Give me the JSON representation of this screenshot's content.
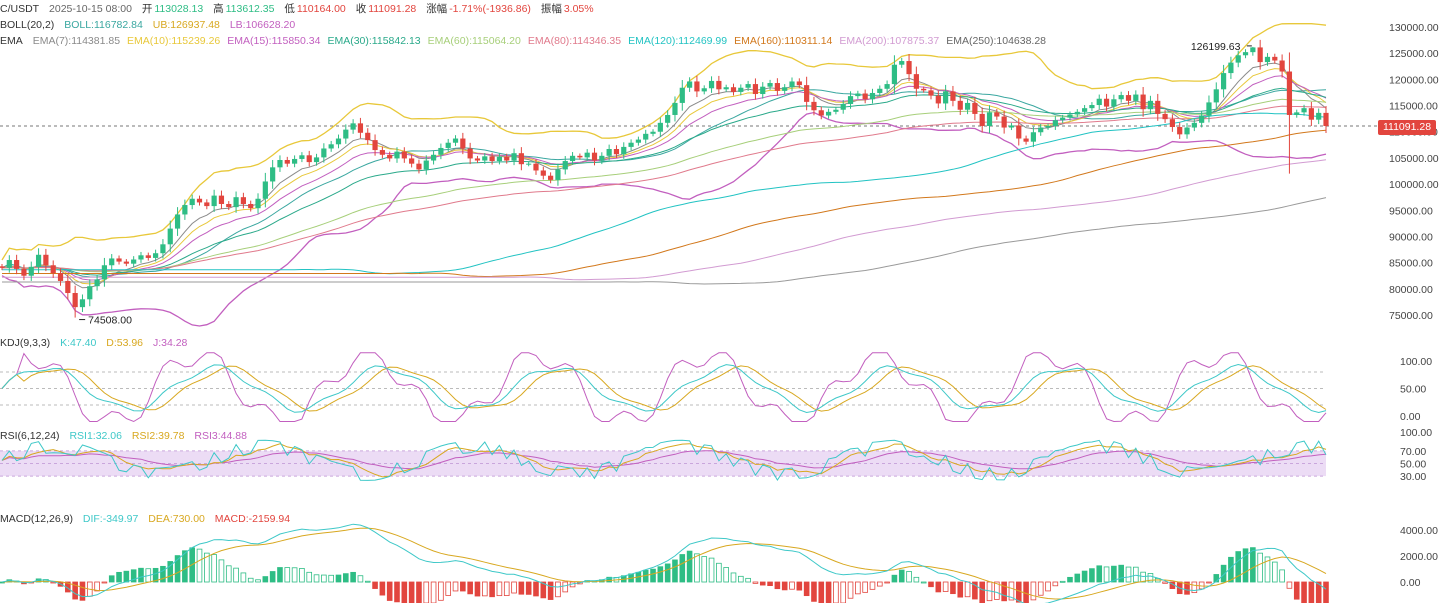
{
  "header": {
    "symbol": "C/USDT",
    "datetime": "2025-10-15 08:00",
    "open_label": "开",
    "open": "113028.13",
    "high_label": "高",
    "high": "113612.35",
    "low_label": "低",
    "low": "110164.00",
    "close_label": "收",
    "close": "111091.28",
    "change_label": "涨幅",
    "change": "-1.71%(-1936.86)",
    "amp_label": "振幅",
    "amp": "3.05%"
  },
  "boll": {
    "label": "BOLL(20,2)",
    "boll": "BOLL:116782.84",
    "ub": "UB:126937.48",
    "lb": "LB:106628.20"
  },
  "ema": {
    "label": "EMA",
    "items": [
      {
        "text": "EMA(7):114381.85",
        "color": "#8a8a8a"
      },
      {
        "text": "EMA(10):115239.26",
        "color": "#e8c83a"
      },
      {
        "text": "EMA(15):115850.34",
        "color": "#c25fbf"
      },
      {
        "text": "EMA(30):115842.13",
        "color": "#2aa98a"
      },
      {
        "text": "EMA(60):115064.20",
        "color": "#a7cf7a"
      },
      {
        "text": "EMA(80):114346.35",
        "color": "#e07a8c"
      },
      {
        "text": "EMA(120):112469.99",
        "color": "#22c3c3"
      },
      {
        "text": "EMA(160):110311.14",
        "color": "#d2781c"
      },
      {
        "text": "EMA(200):107875.37",
        "color": "#d29bd2"
      },
      {
        "text": "EMA(250):104638.28",
        "color": "#666666"
      }
    ]
  },
  "kdj": {
    "label": "KDJ(9,3,3)",
    "k": "K:47.40",
    "d": "D:53.96",
    "j": "J:34.28"
  },
  "rsi": {
    "label": "RSI(6,12,24)",
    "r1": "RSI1:32.06",
    "r2": "RSI2:39.78",
    "r3": "RSI3:44.88"
  },
  "macd": {
    "label": "MACD(12,26,9)",
    "dif": "DIF:-349.97",
    "dea": "DEA:730.00",
    "macd": "MACD:-2159.94"
  },
  "price_axis": [
    "130000.00",
    "125000.00",
    "120000.00",
    "115000.00",
    "110000.00",
    "105000.00",
    "100000.00",
    "95000.00",
    "90000.00",
    "85000.00",
    "80000.00",
    "75000.00"
  ],
  "kdj_axis": [
    "100.00",
    "50.00",
    "0.00"
  ],
  "rsi_axis": [
    "100.00",
    "70.00",
    "50.00",
    "30.00"
  ],
  "macd_axis": [
    "4000.00",
    "2000.00",
    "0.00"
  ],
  "current_price": "111091.28",
  "high_marker": "126199.63",
  "low_marker": "74508.00",
  "colors": {
    "up": "#2ebd85",
    "down": "#e2453e"
  },
  "chart_data": {
    "type": "candlestick",
    "ylim": [
      73000,
      131000
    ],
    "current_price": 111091.28,
    "annotations": {
      "max": 126199.63,
      "min": 74508.0
    },
    "closes": [
      84000,
      85500,
      83800,
      82500,
      84200,
      86500,
      84500,
      83000,
      81500,
      79200,
      76500,
      78000,
      80500,
      81800,
      84500,
      85800,
      85200,
      84800,
      85600,
      86400,
      85900,
      86800,
      88500,
      91500,
      94200,
      96000,
      97200,
      96500,
      95800,
      97800,
      96200,
      95600,
      97500,
      96200,
      95400,
      97200,
      100500,
      103200,
      104600,
      103900,
      104800,
      105500,
      104200,
      105100,
      106800,
      107600,
      108700,
      110400,
      111600,
      109800,
      108400,
      106500,
      105600,
      104900,
      106200,
      104900,
      103900,
      102800,
      104500,
      105600,
      106900,
      107900,
      108700,
      106800,
      104900,
      104500,
      105300,
      104400,
      105200,
      104500,
      105900,
      103800,
      103900,
      102600,
      101600,
      100800,
      102800,
      104400,
      105400,
      105100,
      106000,
      104500,
      105400,
      106700,
      105700,
      107100,
      107900,
      108500,
      109600,
      110000,
      111700,
      113200,
      115500,
      118400,
      119600,
      117700,
      118300,
      119700,
      118100,
      118500,
      117600,
      118400,
      119100,
      117200,
      118600,
      119300,
      117800,
      118500,
      119600,
      118900,
      115700,
      114100,
      113100,
      113800,
      114200,
      115300,
      116800,
      117300,
      116200,
      117400,
      118200,
      119100,
      122800,
      123500,
      121000,
      118200,
      117900,
      116900,
      115400,
      117700,
      115900,
      114200,
      115500,
      113400,
      111100,
      113700,
      112900,
      110800,
      111200,
      108700,
      108100,
      109900,
      110800,
      111100,
      112200,
      112700,
      113300,
      113800,
      114500,
      115100,
      116300,
      114800,
      116200,
      117000,
      115900,
      117100,
      114300,
      115900,
      113400,
      112400,
      110900,
      109500,
      110800,
      111700,
      113100,
      115600,
      118100,
      121200,
      123200,
      124600,
      125200,
      126100,
      123300,
      124300,
      123600,
      121500,
      113200,
      113700,
      114500,
      112300,
      113600,
      111091
    ]
  }
}
